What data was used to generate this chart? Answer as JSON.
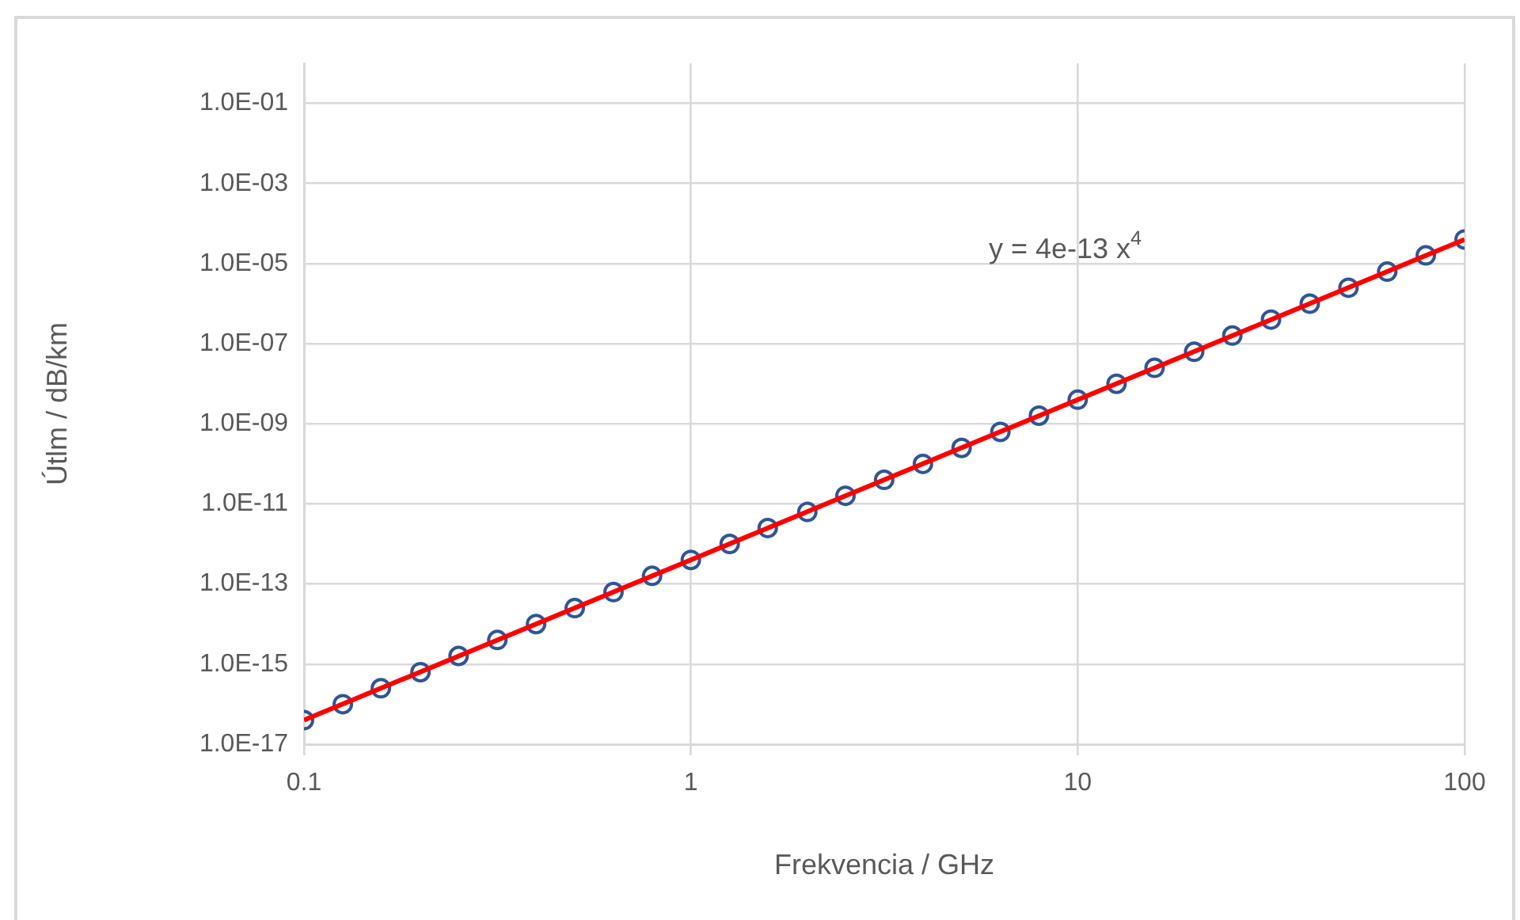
{
  "chart_data": {
    "type": "scatter",
    "xlabel": "Frekvencia / GHz",
    "ylabel": "Útlm / dB/km",
    "annotations": [
      "y = 4e-13 x$^{4}$"
    ],
    "log": "xy",
    "grid": true,
    "legend": false,
    "marker": "circle",
    "xlim": [
      0.1,
      100
    ],
    "xticks": [
      0.1,
      1,
      10,
      100
    ],
    "ylim": [
      1e-17,
      1
    ],
    "yticks": [
      {
        "value": 1e-17,
        "label": "1.0E-17"
      },
      {
        "value": 1e-15,
        "label": "1.0E-15"
      },
      {
        "value": 1e-13,
        "label": "1.0E-13"
      },
      {
        "value": 1e-11,
        "label": "1.0E-11"
      },
      {
        "value": 1e-09,
        "label": "1.0E-09"
      },
      {
        "value": 1e-07,
        "label": "1.0E-07"
      },
      {
        "value": 1e-05,
        "label": "1.0E-05"
      },
      {
        "value": 0.001,
        "label": "1.0E-03"
      },
      {
        "value": 0.1,
        "label": "1.0E-01"
      }
    ],
    "x": [
      0.1,
      0.126,
      0.158,
      0.2,
      0.251,
      0.316,
      0.398,
      0.501,
      0.631,
      0.794,
      1,
      1.26,
      1.58,
      2,
      2.51,
      3.16,
      3.98,
      5.01,
      6.31,
      7.94,
      10,
      12.6,
      15.8,
      20,
      25.1,
      31.6,
      39.8,
      50.1,
      63.1,
      79.4,
      100
    ],
    "series": [
      {
        "type": "scatter",
        "color": "#2f5597",
        "values": [
          4e-17,
          1e-16,
          2.5e-16,
          6.3e-16,
          1.6e-15,
          4e-15,
          1e-14,
          2.5e-14,
          6.3e-14,
          1.6e-13,
          4e-13,
          1e-12,
          2.5e-12,
          6.3e-12,
          1.6e-11,
          4e-11,
          1e-10,
          2.5e-10,
          6.3e-10,
          1.6e-09,
          4e-09,
          1e-08,
          2.5e-08,
          6.3e-08,
          1.6e-07,
          4e-07,
          1e-06,
          2.5e-06,
          6.3e-06,
          1.6e-05,
          4e-05
        ]
      },
      {
        "type": "line",
        "marker": "none",
        "color": "#ff0000",
        "x": [
          0.1,
          100
        ],
        "values": [
          4e-17,
          4e-05
        ]
      }
    ]
  }
}
